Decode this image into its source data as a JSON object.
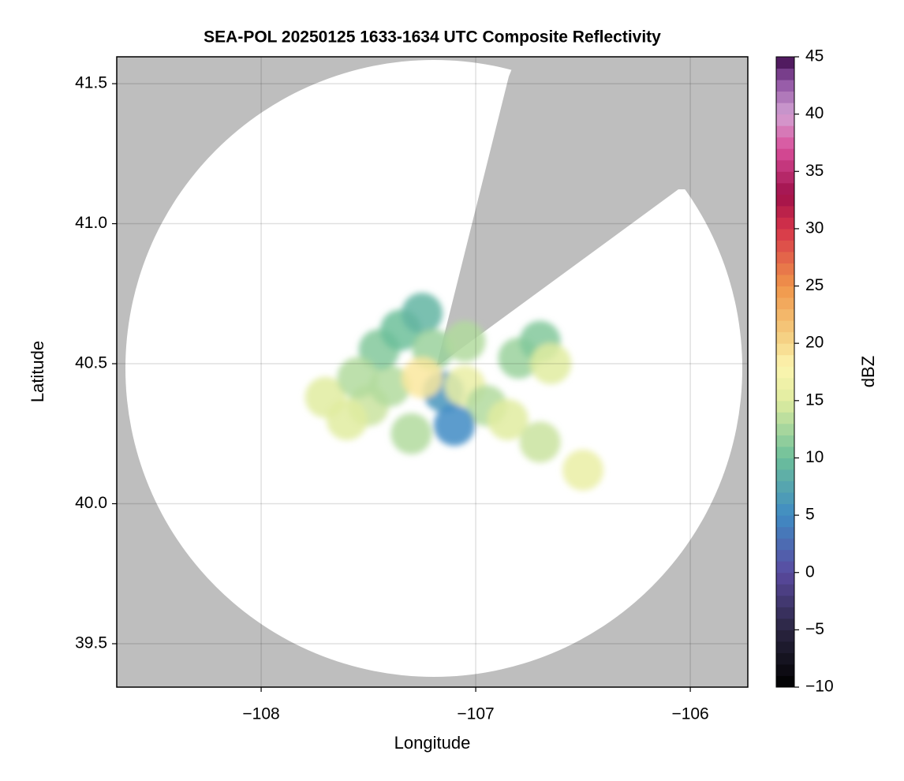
{
  "chart_data": {
    "type": "heatmap",
    "title": "SEA-POL 20250125 1633-1634 UTC Composite Reflectivity",
    "x_label": "Longitude",
    "y_label": "Latitude",
    "xlim": [
      -108.673,
      -105.732
    ],
    "ylim": [
      39.345,
      41.596
    ],
    "xticks": [
      {
        "value": -108,
        "label": "−108"
      },
      {
        "value": -107,
        "label": "−107"
      },
      {
        "value": -106,
        "label": "−106"
      }
    ],
    "yticks": [
      {
        "value": 39.5,
        "label": "39.5"
      },
      {
        "value": 40,
        "label": "40.0"
      },
      {
        "value": 40.5,
        "label": "40.5"
      },
      {
        "value": 41,
        "label": "41.0"
      },
      {
        "value": 41.5,
        "label": "41.5"
      }
    ],
    "grid": true,
    "colorbar_label": "dBZ",
    "clim": [
      -10,
      45
    ],
    "cticks": [
      {
        "value": -10,
        "label": "−10"
      },
      {
        "value": -5,
        "label": "−5"
      },
      0,
      5,
      10,
      15,
      20,
      25,
      30,
      35,
      40,
      45
    ],
    "colormap": [
      {
        "value": -10,
        "color": "#000000"
      },
      {
        "value": -5,
        "color": "#2a2540"
      },
      {
        "value": 0,
        "color": "#5a4aa0"
      },
      {
        "value": 5,
        "color": "#3f8bc4"
      },
      {
        "value": 10,
        "color": "#6cbf9a"
      },
      {
        "value": 15,
        "color": "#e0eca0"
      },
      {
        "value": 18,
        "color": "#fdf5b0"
      },
      {
        "value": 20,
        "color": "#f6d88a"
      },
      {
        "value": 25,
        "color": "#f0954a"
      },
      {
        "value": 30,
        "color": "#d6344a"
      },
      {
        "value": 33,
        "color": "#a0104a"
      },
      {
        "value": 37,
        "color": "#d94f9b"
      },
      {
        "value": 40,
        "color": "#d3a2d3"
      },
      {
        "value": 43,
        "color": "#8c4fa0"
      },
      {
        "value": 45,
        "color": "#3d0a4a"
      }
    ],
    "echoes": {
      "lon": [
        -107.5,
        -107.6,
        -107.4,
        -107.45,
        -107.35,
        -107.25,
        -107.2,
        -107.15,
        -107.05,
        -106.95,
        -106.85,
        -106.7,
        -106.8,
        -106.7,
        -106.65,
        -107.3,
        -107.1,
        -107.25,
        -107.7,
        -107.55,
        -106.5,
        -107.05
      ],
      "lat": [
        40.35,
        40.3,
        40.42,
        40.55,
        40.62,
        40.68,
        40.55,
        40.4,
        40.42,
        40.35,
        40.3,
        40.22,
        40.52,
        40.58,
        40.5,
        40.25,
        40.28,
        40.45,
        40.38,
        40.45,
        40.12,
        40.58
      ],
      "dbz": [
        14,
        15,
        13,
        11,
        10,
        9,
        12,
        6,
        16,
        13,
        15,
        14,
        12,
        11,
        15,
        13,
        5,
        19,
        15,
        13,
        16,
        13
      ]
    }
  }
}
